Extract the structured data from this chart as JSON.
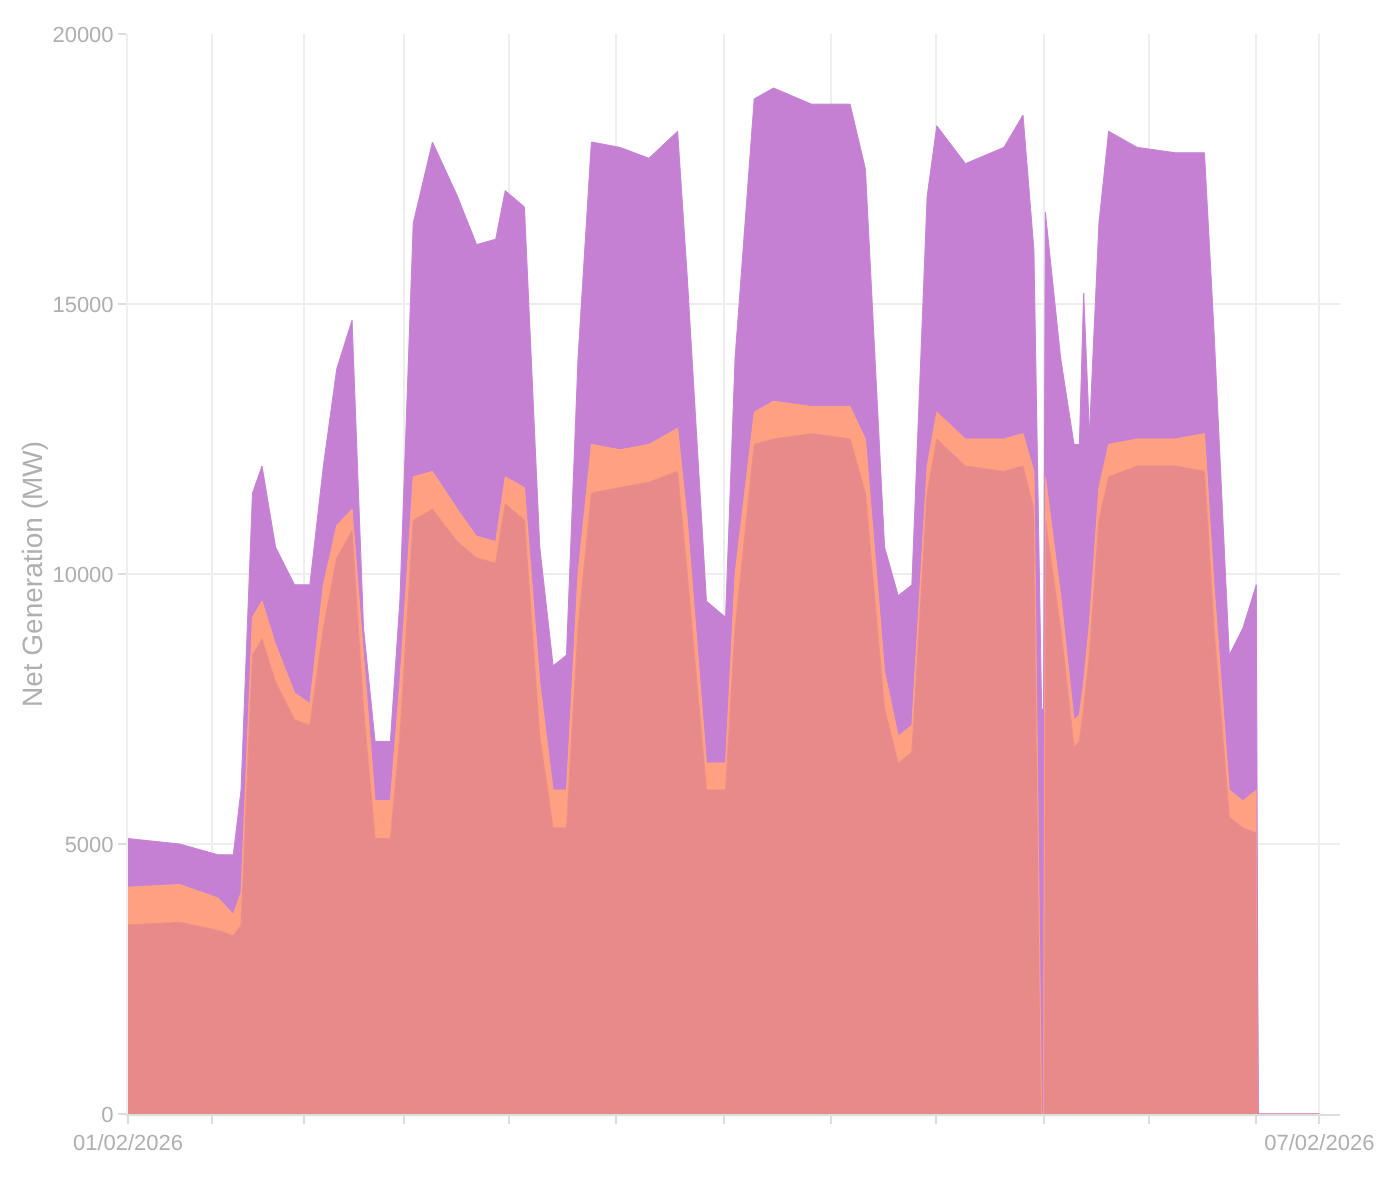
{
  "chart_data": {
    "type": "area",
    "stacked": true,
    "ylabel": "Net Generation (MW)",
    "grid": true,
    "x": [
      "2026-02-01T00:00",
      "2026-02-01T06:15",
      "2026-02-01T10:53",
      "2026-02-01T12:44",
      "2026-02-01T13:40",
      "2026-02-01T15:03",
      "2026-02-01T16:12",
      "2026-02-01T17:50",
      "2026-02-01T20:08",
      "2026-02-01T21:59",
      "2026-02-01T23:37",
      "2026-02-02T01:14",
      "2026-02-02T03:05",
      "2026-02-02T04:28",
      "2026-02-02T05:52",
      "2026-02-02T07:43",
      "2026-02-02T08:52",
      "2026-02-02T10:29",
      "2026-02-02T12:48",
      "2026-02-02T15:49",
      "2026-02-02T18:08",
      "2026-02-02T20:27",
      "2026-02-02T21:36",
      "2026-02-02T23:55",
      "2026-02-03T01:46",
      "2026-02-03T03:23",
      "2026-02-03T05:00",
      "2026-02-03T06:24",
      "2026-02-03T08:01",
      "2026-02-03T11:29",
      "2026-02-03T14:58",
      "2026-02-03T18:26",
      "2026-02-03T19:36",
      "2026-02-03T21:55",
      "2026-02-04T00:14",
      "2026-02-04T01:23",
      "2026-02-04T03:42",
      "2026-02-04T06:01",
      "2026-02-04T10:39",
      "2026-02-04T15:17",
      "2026-02-04T17:08",
      "2026-02-04T19:27",
      "2026-02-04T21:06",
      "2026-02-04T22:45",
      "2026-02-05T00:36",
      "2026-02-05T01:46",
      "2026-02-05T05:14",
      "2026-02-05T09:52",
      "2026-02-05T12:11",
      "2026-02-05T13:30",
      "2026-02-05T14:26",
      "2026-02-05T14:40",
      "2026-02-05T14:53",
      "2026-02-05T16:44",
      "2026-02-05T18:21",
      "2026-02-05T19:00",
      "2026-02-05T19:31",
      "2026-02-05T20:13",
      "2026-02-05T21:22",
      "2026-02-05T22:32",
      "2026-02-06T02:00",
      "2026-02-06T06:38",
      "2026-02-06T10:07",
      "2026-02-06T11:16",
      "2026-02-06T13:07",
      "2026-02-06T14:46",
      "2026-02-06T16:23",
      "2026-02-06T16:37",
      "2026-02-07T00:00"
    ],
    "series": [
      {
        "color": "#e88a8a",
        "values": [
          3500,
          3550,
          3400,
          3300,
          3500,
          8500,
          8800,
          8000,
          7300,
          7200,
          9000,
          10300,
          10800,
          7500,
          5100,
          5100,
          7000,
          11000,
          11200,
          10600,
          10300,
          10200,
          11300,
          11000,
          7000,
          5300,
          5300,
          9000,
          11500,
          11600,
          11700,
          11900,
          10000,
          6000,
          6000,
          9000,
          12400,
          12500,
          12600,
          12500,
          11500,
          7500,
          6500,
          6700,
          11500,
          12500,
          12000,
          11900,
          12000,
          11200,
          0,
          0,
          11000,
          9000,
          6800,
          6900,
          7500,
          8500,
          11000,
          11800,
          12000,
          12000,
          11900,
          9000,
          5500,
          5300,
          5200,
          0,
          0
        ]
      },
      {
        "color": "#ffa080",
        "values": [
          700,
          700,
          600,
          400,
          600,
          700,
          700,
          700,
          500,
          400,
          800,
          600,
          400,
          1000,
          700,
          700,
          1000,
          800,
          700,
          600,
          400,
          400,
          500,
          600,
          1000,
          700,
          700,
          1000,
          900,
          700,
          700,
          800,
          1000,
          500,
          500,
          1000,
          600,
          700,
          500,
          600,
          1000,
          700,
          500,
          500,
          500,
          500,
          500,
          600,
          600,
          700,
          0,
          0,
          800,
          600,
          500,
          500,
          500,
          600,
          600,
          600,
          500,
          500,
          700,
          800,
          500,
          500,
          800,
          0,
          0
        ]
      },
      {
        "color": "#c580d4",
        "values": [
          900,
          750,
          800,
          1100,
          1900,
          2300,
          2500,
          1800,
          2000,
          2200,
          2200,
          2900,
          3500,
          500,
          1100,
          1100,
          1500,
          4700,
          6100,
          5800,
          5400,
          5600,
          5300,
          5200,
          2500,
          2300,
          2500,
          4000,
          5600,
          5600,
          5300,
          5500,
          4500,
          3000,
          2700,
          4000,
          5800,
          5800,
          5600,
          5600,
          5000,
          2300,
          2600,
          2600,
          5000,
          5300,
          5100,
          5400,
          5900,
          4100,
          7500,
          7500,
          4900,
          4400,
          5100,
          5000,
          7200,
          3500,
          4900,
          5800,
          5400,
          5300,
          5200,
          4700,
          2500,
          3200,
          3800,
          0,
          0
        ]
      }
    ],
    "xlim": [
      "2026-02-01T00:00",
      "2026-02-07T02:30"
    ],
    "xticks": [
      {
        "value": "2026-02-01T00:00",
        "label": "01/02/2026"
      },
      {
        "value": "2026-02-01T10:12",
        "label": null
      },
      {
        "value": "2026-02-01T21:18",
        "label": null
      },
      {
        "value": "2026-02-02T09:18",
        "label": null
      },
      {
        "value": "2026-02-02T22:06",
        "label": null
      },
      {
        "value": "2026-02-03T11:00",
        "label": null
      },
      {
        "value": "2026-02-04T00:00",
        "label": null
      },
      {
        "value": "2026-02-04T13:00",
        "label": null
      },
      {
        "value": "2026-02-05T01:42",
        "label": null
      },
      {
        "value": "2026-02-05T14:42",
        "label": null
      },
      {
        "value": "2026-02-06T03:24",
        "label": null
      },
      {
        "value": "2026-02-06T16:24",
        "label": null
      },
      {
        "value": "2026-02-07T00:00",
        "label": "07/02/2026"
      }
    ],
    "ylim": [
      0,
      20000
    ],
    "yticks": [
      0,
      5000,
      10000,
      15000,
      20000
    ]
  }
}
